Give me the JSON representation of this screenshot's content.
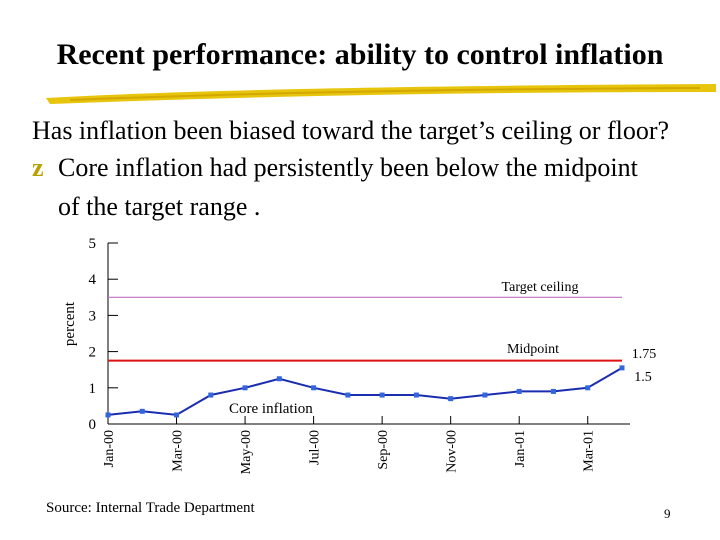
{
  "slide": {
    "title": "Recent performance: ability to control inflation",
    "question": "Has inflation been biased toward the target’s ceiling or floor?",
    "bullet_line1": "Core inflation had persistently been below the midpoint",
    "bullet_line2": "of the target range .",
    "bullet_glyph": "z",
    "source": "Source: Internal Trade Department",
    "page_number": "9"
  },
  "colors": {
    "series": "#1a2db0",
    "marker": "#3366dd",
    "ceiling": "#c070c0",
    "midpoint": "#dd1111",
    "underline": "#e6c200"
  },
  "chart_data": {
    "type": "line",
    "ylabel": "percent",
    "ylim": [
      0,
      5
    ],
    "yticks": [
      "0",
      "1",
      "2",
      "3",
      "4",
      "5"
    ],
    "x_tick_labels": [
      "Jan-00",
      "Mar-00",
      "May-00",
      "Jul-00",
      "Sep-00",
      "Nov-00",
      "Jan-01",
      "Mar-01"
    ],
    "x": [
      "Jan-00",
      "Feb-00",
      "Mar-00",
      "Apr-00",
      "May-00",
      "Jun-00",
      "Jul-00",
      "Aug-00",
      "Sep-00",
      "Oct-00",
      "Nov-00",
      "Dec-00",
      "Jan-01",
      "Feb-01",
      "Mar-01",
      "Apr-01"
    ],
    "series": [
      {
        "name": "Core inflation",
        "values": [
          0.25,
          0.35,
          0.25,
          0.8,
          1.0,
          1.25,
          1.0,
          0.8,
          0.8,
          0.8,
          0.7,
          0.8,
          0.9,
          0.9,
          1.0,
          1.55
        ]
      }
    ],
    "reference_lines": [
      {
        "name": "Target ceiling",
        "value": 3.5
      },
      {
        "name": "Midpoint",
        "value": 1.75
      }
    ],
    "annotations": [
      "1.75",
      "1.5"
    ]
  }
}
